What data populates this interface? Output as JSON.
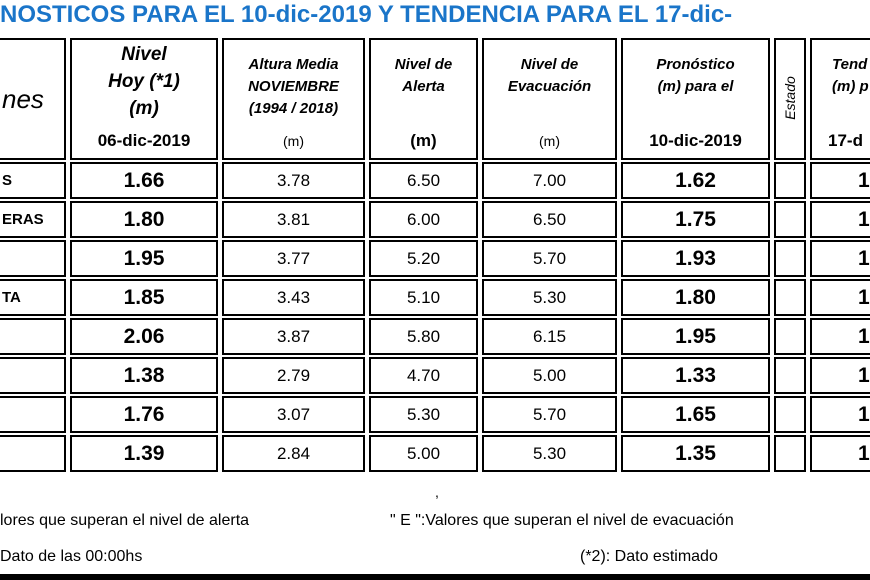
{
  "header": {
    "title": "NOSTICOS PARA EL 10-dic-2019 Y TENDENCIA PARA EL 17-dic-"
  },
  "table": {
    "header_cells": [
      {
        "lines": [
          "nes"
        ]
      },
      {
        "lines": [
          "Nivel",
          "Hoy (*1)",
          "(m)"
        ],
        "foot": "06-dic-2019"
      },
      {
        "lines": [
          "Altura Media",
          "NOVIEMBRE",
          "(1994 / 2018)"
        ],
        "foot": "(m)"
      },
      {
        "lines": [
          "Nivel de",
          "Alerta"
        ],
        "foot": "(m)"
      },
      {
        "lines": [
          "Nivel de",
          "Evacuación"
        ],
        "foot": "(m)"
      },
      {
        "lines": [
          "Pronóstico",
          "(m) para el"
        ],
        "foot": "10-dic-2019"
      },
      {
        "lines": [
          "Estado"
        ]
      },
      {
        "lines": [
          "Tend",
          "(m) p"
        ],
        "foot": "17-d"
      }
    ],
    "rows": [
      [
        "S",
        "1.66",
        "3.78",
        "6.50",
        "7.00",
        "1.62",
        null,
        "1"
      ],
      [
        "ERAS",
        "1.80",
        "3.81",
        "6.00",
        "6.50",
        "1.75",
        null,
        "1"
      ],
      [
        null,
        "1.95",
        "3.77",
        "5.20",
        "5.70",
        "1.93",
        null,
        "1"
      ],
      [
        "TA",
        "1.85",
        "3.43",
        "5.10",
        "5.30",
        "1.80",
        null,
        "1"
      ],
      [
        null,
        "2.06",
        "3.87",
        "5.80",
        "6.15",
        "1.95",
        null,
        "1"
      ],
      [
        null,
        "1.38",
        "2.79",
        "4.70",
        "5.00",
        "1.33",
        null,
        "1"
      ],
      [
        null,
        "1.76",
        "3.07",
        "5.30",
        "5.70",
        "1.65",
        null,
        "1"
      ],
      [
        null,
        "1.39",
        "2.84",
        "5.00",
        "5.30",
        "1.35",
        null,
        "1"
      ]
    ]
  },
  "footer": {
    "notes": [
      "lores que superan el nivel de alerta",
      "\" E \":Valores que superan el nivel de evacuación",
      "Dato de las 00:00hs",
      "(*2): Dato estimado"
    ]
  }
}
